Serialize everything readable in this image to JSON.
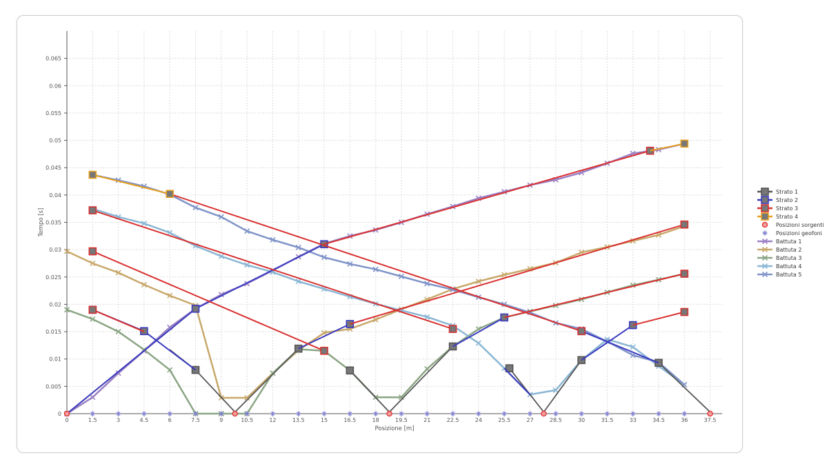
{
  "chart_data": {
    "type": "line",
    "title": "",
    "xlabel": "Posizione [m]",
    "ylabel": "Tempo [s]",
    "xlim": [
      0,
      38.2
    ],
    "ylim": [
      0,
      0.07
    ],
    "xticks": [
      0,
      1.5,
      3,
      4.5,
      6,
      7.5,
      9,
      10.5,
      12,
      13.5,
      15,
      16.5,
      18,
      19.5,
      21,
      22.5,
      24,
      25.5,
      27,
      28.5,
      30,
      31.5,
      33,
      34.5,
      36,
      37.5
    ],
    "xtick_labels": [
      "0",
      "1.5",
      "3",
      "4.5",
      "6",
      "7.5",
      "9",
      "10.5",
      "12",
      "13.5",
      "15",
      "16.5",
      "18",
      "19.5",
      "21",
      "22.5",
      "24",
      "25.5",
      "27",
      "28.5",
      "30",
      "31.5",
      "33",
      "34.5",
      "36",
      "37.5"
    ],
    "yticks": [
      0,
      0.005,
      0.01,
      0.015,
      0.02,
      0.025,
      0.03,
      0.035,
      0.04,
      0.045,
      0.05,
      0.055,
      0.06,
      0.065
    ],
    "ytick_labels": [
      "0",
      "0.005",
      "0.01",
      "0.015",
      "0.02",
      "0.025",
      "0.03",
      "0.035",
      "0.04",
      "0.045",
      "0.05",
      "0.055",
      "0.06",
      "0.065"
    ],
    "grid": true,
    "legend_position": "right",
    "series": [
      {
        "name": "Battuta 1",
        "color": "#9a7fc3",
        "marker": "cross",
        "width": 2.5,
        "x": [
          0,
          1.5,
          3,
          4.5,
          6,
          7.5,
          9,
          10.5,
          12,
          13.5,
          15,
          16.5,
          18,
          19.5,
          21,
          22.5,
          24,
          25.5,
          27,
          28.5,
          30,
          31.5,
          33,
          34.5,
          36
        ],
        "y": [
          0,
          0.003,
          0.0074,
          0.0115,
          0.0158,
          0.0192,
          0.0218,
          0.0238,
          0.0262,
          0.0287,
          0.0311,
          0.0325,
          0.0336,
          0.035,
          0.0365,
          0.0379,
          0.0394,
          0.0406,
          0.0418,
          0.0428,
          0.0441,
          0.0458,
          0.0476,
          0.0483,
          0.0494
        ]
      },
      {
        "name": "Battuta 2",
        "color": "#c8a86a",
        "marker": "cross",
        "width": 2.5,
        "x": [
          0,
          1.5,
          3,
          4.5,
          6,
          7.5,
          9,
          10.5,
          12,
          13.5,
          15,
          16.5,
          18,
          19.5,
          21,
          22.5,
          24,
          25.5,
          27,
          28.5,
          30,
          31.5,
          33,
          34.5,
          36
        ],
        "y": [
          0.0297,
          0.0275,
          0.0258,
          0.0236,
          0.0216,
          0.0198,
          0.0029,
          0.0029,
          0.0074,
          0.0116,
          0.0148,
          0.0155,
          0.0172,
          0.0191,
          0.0209,
          0.0228,
          0.0242,
          0.0254,
          0.0265,
          0.0276,
          0.0295,
          0.0305,
          0.0316,
          0.0327,
          0.0343
        ]
      },
      {
        "name": "Battuta 3",
        "color": "#8aa583",
        "marker": "cross",
        "width": 2.5,
        "x": [
          0,
          1.5,
          3,
          4.5,
          6,
          7.5,
          9,
          10.5,
          12,
          13.5,
          15,
          16.5,
          18,
          19.5,
          21,
          22.5,
          24,
          25.5,
          27,
          28.5,
          30,
          31.5,
          33,
          34.5,
          36
        ],
        "y": [
          0.019,
          0.0173,
          0.015,
          0.0117,
          0.008,
          0.0,
          0.0,
          0.0,
          0.0074,
          0.0118,
          0.0115,
          0.0079,
          0.003,
          0.003,
          0.0082,
          0.0123,
          0.0155,
          0.0176,
          0.0187,
          0.0198,
          0.0209,
          0.0222,
          0.0235,
          0.0245,
          0.0256
        ]
      },
      {
        "name": "Battuta 4",
        "color": "#8ab6d4",
        "marker": "cross",
        "width": 2.5,
        "x": [
          1.5,
          3,
          4.5,
          6,
          7.5,
          9,
          10.5,
          12,
          13.5,
          15,
          16.5,
          18,
          19.5,
          21,
          22.5,
          24,
          25.5,
          27,
          28.5,
          30,
          31.5,
          33,
          34.5,
          36
        ],
        "y": [
          0.0375,
          0.036,
          0.0348,
          0.0331,
          0.0307,
          0.0288,
          0.0272,
          0.0259,
          0.0242,
          0.0228,
          0.0214,
          0.0201,
          0.0189,
          0.0177,
          0.0161,
          0.0129,
          0.0083,
          0.0035,
          0.0043,
          0.0098,
          0.0136,
          0.0122,
          0.0087,
          0.0053
        ]
      },
      {
        "name": "Battuta 5",
        "color": "#7f93c8",
        "marker": "cross",
        "width": 2.5,
        "x": [
          1.5,
          3,
          4.5,
          6,
          7.5,
          9,
          10.5,
          12,
          13.5,
          15,
          16.5,
          18,
          19.5,
          21,
          22.5,
          24,
          25.5,
          27,
          28.5,
          30,
          31.5,
          33,
          34.5,
          36
        ],
        "y": [
          0.0437,
          0.0427,
          0.0416,
          0.0401,
          0.0377,
          0.036,
          0.0334,
          0.0318,
          0.0304,
          0.0286,
          0.0274,
          0.0264,
          0.0251,
          0.0238,
          0.0227,
          0.0213,
          0.02,
          0.0185,
          0.0166,
          0.0155,
          0.0132,
          0.0107,
          0.0094,
          0.0053
        ]
      },
      {
        "name": "Strato 1",
        "color": "#555555",
        "marker": "square",
        "width": 1.8,
        "segments": [
          [
            [
              0,
              0
            ],
            [
              7.5,
              0.0192
            ]
          ],
          [
            [
              6,
              0.0117
            ],
            [
              7.5,
              0.008
            ],
            [
              9.8,
              0.0003
            ],
            [
              13.5,
              0.0119
            ]
          ],
          [
            [
              16.5,
              0.0079
            ],
            [
              18.8,
              0.0003
            ],
            [
              22.5,
              0.0123
            ]
          ],
          [
            [
              25.8,
              0.0083
            ],
            [
              27.8,
              0.0003
            ],
            [
              30,
              0.0098
            ]
          ],
          [
            [
              34.5,
              0.0093
            ],
            [
              37.5,
              0.0003
            ]
          ]
        ],
        "markers": [
          [
            7.5,
            0.008
          ],
          [
            13.5,
            0.0119
          ],
          [
            16.5,
            0.0079
          ],
          [
            22.5,
            0.0123
          ],
          [
            25.8,
            0.0083
          ],
          [
            30,
            0.0098
          ],
          [
            34.5,
            0.0093
          ]
        ]
      },
      {
        "name": "Strato 2",
        "color": "#3a3ac0",
        "marker": "square",
        "width": 2,
        "segments": [
          [
            [
              0,
              0
            ],
            [
              7.5,
              0.0192
            ]
          ],
          [
            [
              7.5,
              0.0192
            ],
            [
              15,
              0.031
            ]
          ],
          [
            [
              1.5,
              0.019
            ],
            [
              4.5,
              0.0151
            ],
            [
              7.5,
              0.008
            ]
          ],
          [
            [
              13.5,
              0.0119
            ],
            [
              16.5,
              0.0164
            ]
          ],
          [
            [
              22.5,
              0.0123
            ],
            [
              25.5,
              0.0176
            ]
          ],
          [
            [
              30,
              0.0098
            ],
            [
              33,
              0.0162
            ]
          ],
          [
            [
              30,
              0.0151
            ],
            [
              34.5,
              0.0093
            ]
          ],
          [
            [
              25.5,
              0.0083
            ],
            [
              27,
              0.0035
            ]
          ]
        ],
        "markers": [
          [
            7.5,
            0.0192
          ],
          [
            15,
            0.031
          ],
          [
            4.5,
            0.0151
          ],
          [
            1.5,
            0.019
          ],
          [
            16.5,
            0.0164
          ],
          [
            25.5,
            0.0176
          ],
          [
            33,
            0.0162
          ],
          [
            30,
            0.0151
          ]
        ]
      },
      {
        "name": "Strato 3",
        "color": "#d93030",
        "marker": "square",
        "width": 2,
        "segments": [
          [
            [
              1.5,
              0.0372
            ],
            [
              22.5,
              0.0155
            ]
          ],
          [
            [
              1.5,
              0.0297
            ],
            [
              15,
              0.0115
            ]
          ],
          [
            [
              1.5,
              0.019
            ],
            [
              4.5,
              0.015
            ]
          ],
          [
            [
              15,
              0.031
            ],
            [
              34,
              0.0481
            ]
          ],
          [
            [
              16.5,
              0.0164
            ],
            [
              36,
              0.0346
            ]
          ],
          [
            [
              25.5,
              0.0176
            ],
            [
              36,
              0.0256
            ]
          ],
          [
            [
              33,
              0.0162
            ],
            [
              36,
              0.0186
            ]
          ],
          [
            [
              6,
              0.0402
            ],
            [
              30,
              0.0151
            ]
          ]
        ],
        "markers": [
          [
            1.5,
            0.0372
          ],
          [
            1.5,
            0.0297
          ],
          [
            1.5,
            0.019
          ],
          [
            15,
            0.0115
          ],
          [
            22.5,
            0.0155
          ],
          [
            34,
            0.0481
          ],
          [
            36,
            0.0346
          ],
          [
            36,
            0.0256
          ],
          [
            36,
            0.0186
          ],
          [
            30,
            0.0151
          ]
        ]
      },
      {
        "name": "Strato 4",
        "color": "#e6a020",
        "marker": "square",
        "width": 2,
        "segments": [
          [
            [
              1.5,
              0.0437
            ],
            [
              6,
              0.0402
            ]
          ],
          [
            [
              34,
              0.0481
            ],
            [
              36,
              0.0494
            ]
          ]
        ],
        "markers": [
          [
            1.5,
            0.0437
          ],
          [
            6,
            0.0402
          ],
          [
            36,
            0.0494
          ]
        ]
      },
      {
        "name": "Posizioni sorgenti",
        "color": "#e03a3a",
        "marker": "circle",
        "points": [
          [
            0,
            0
          ],
          [
            9.8,
            0
          ],
          [
            18.8,
            0
          ],
          [
            27.8,
            0
          ],
          [
            37.5,
            0
          ]
        ]
      },
      {
        "name": "Posizioni geofoni",
        "color": "#8080d0",
        "marker": "star",
        "points": [
          [
            1.5,
            0
          ],
          [
            3,
            0
          ],
          [
            4.5,
            0
          ],
          [
            6,
            0
          ],
          [
            7.5,
            0
          ],
          [
            9,
            0
          ],
          [
            10.5,
            0
          ],
          [
            12,
            0
          ],
          [
            13.5,
            0
          ],
          [
            15,
            0
          ],
          [
            16.5,
            0
          ],
          [
            18,
            0
          ],
          [
            19.5,
            0
          ],
          [
            21,
            0
          ],
          [
            22.5,
            0
          ],
          [
            24,
            0
          ],
          [
            25.5,
            0
          ],
          [
            27,
            0
          ],
          [
            28.5,
            0
          ],
          [
            30,
            0
          ],
          [
            31.5,
            0
          ],
          [
            33,
            0
          ],
          [
            34.5,
            0
          ],
          [
            36,
            0
          ]
        ]
      }
    ],
    "legend": [
      {
        "name": "Strato 1",
        "color": "#555555",
        "marker": "square"
      },
      {
        "name": "Strato 2",
        "color": "#3a3ac0",
        "marker": "square"
      },
      {
        "name": "Strato 3",
        "color": "#d93030",
        "marker": "square"
      },
      {
        "name": "Strato 4",
        "color": "#e6a020",
        "marker": "square"
      },
      {
        "name": "Posizioni sorgenti",
        "color": "#e03a3a",
        "marker": "circle"
      },
      {
        "name": "Posizioni geofoni",
        "color": "#8080d0",
        "marker": "star"
      },
      {
        "name": "Battuta 1",
        "color": "#9a7fc3",
        "marker": "cross"
      },
      {
        "name": "Battuta 2",
        "color": "#c8a86a",
        "marker": "cross"
      },
      {
        "name": "Battuta 3",
        "color": "#8aa583",
        "marker": "cross"
      },
      {
        "name": "Battuta 4",
        "color": "#8ab6d4",
        "marker": "cross"
      },
      {
        "name": "Battuta 5",
        "color": "#7f93c8",
        "marker": "cross"
      }
    ]
  }
}
